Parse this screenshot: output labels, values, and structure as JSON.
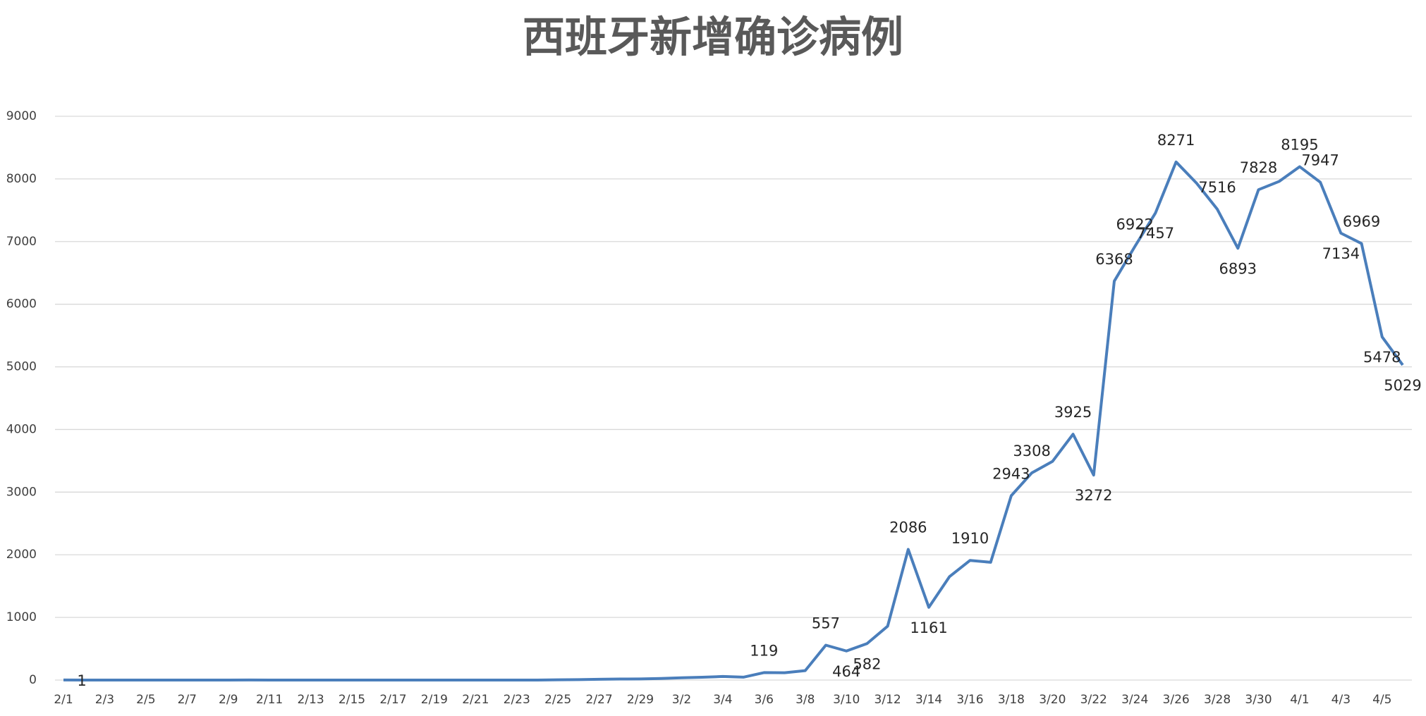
{
  "chart_data": {
    "type": "line",
    "title": "西班牙新增确诊病例",
    "categories": [
      "2/1",
      null,
      "2/3",
      null,
      "2/5",
      null,
      "2/7",
      null,
      "2/9",
      null,
      "2/11",
      null,
      "2/13",
      null,
      "2/15",
      null,
      "2/17",
      null,
      "2/19",
      null,
      "2/21",
      null,
      "2/23",
      null,
      "2/25",
      null,
      "2/27",
      null,
      "2/29",
      null,
      "3/2",
      null,
      "3/4",
      null,
      "3/6",
      null,
      "3/8",
      null,
      "3/10",
      null,
      "3/12",
      null,
      "3/14",
      null,
      "3/16",
      null,
      "3/18",
      null,
      "3/20",
      null,
      "3/22",
      null,
      "3/24",
      null,
      "3/26",
      null,
      "3/28",
      null,
      "3/30",
      null,
      "4/1",
      null,
      "4/3",
      null,
      "4/5",
      null
    ],
    "series": [
      {
        "name": "新增确诊",
        "color": "#4a7ebb",
        "values": [
          1,
          0,
          0,
          0,
          0,
          0,
          0,
          0,
          0,
          1,
          0,
          0,
          0,
          0,
          0,
          0,
          0,
          0,
          0,
          0,
          0,
          0,
          0,
          0,
          4,
          7,
          12,
          17,
          18,
          26,
          36,
          45,
          57,
          46,
          119,
          117,
          150,
          557,
          464,
          582,
          860,
          2086,
          1161,
          1650,
          1910,
          1880,
          2943,
          3308,
          3490,
          3925,
          3272,
          6368,
          6922,
          7457,
          8271,
          7930,
          7516,
          6893,
          7828,
          7960,
          8195,
          7947,
          7134,
          6969,
          5478,
          5029
        ],
        "value_labels": [
          "1",
          null,
          null,
          null,
          null,
          null,
          null,
          null,
          null,
          null,
          null,
          null,
          null,
          null,
          null,
          null,
          null,
          null,
          null,
          null,
          null,
          null,
          null,
          null,
          null,
          null,
          null,
          null,
          null,
          null,
          null,
          null,
          null,
          null,
          "119",
          null,
          null,
          "557",
          "464",
          "582",
          null,
          "2086",
          "1161",
          null,
          "1910",
          null,
          "2943",
          "3308",
          null,
          "3925",
          "3272",
          "6368",
          "6922",
          "7457",
          "8271",
          null,
          "7516",
          "6893",
          "7828",
          null,
          "8195",
          "7947",
          "7134",
          "6969",
          "5478",
          "5029"
        ]
      }
    ],
    "ylim": [
      0,
      9000
    ],
    "yticks": [
      0,
      1000,
      2000,
      3000,
      4000,
      5000,
      6000,
      7000,
      8000,
      9000
    ],
    "grid": true
  }
}
